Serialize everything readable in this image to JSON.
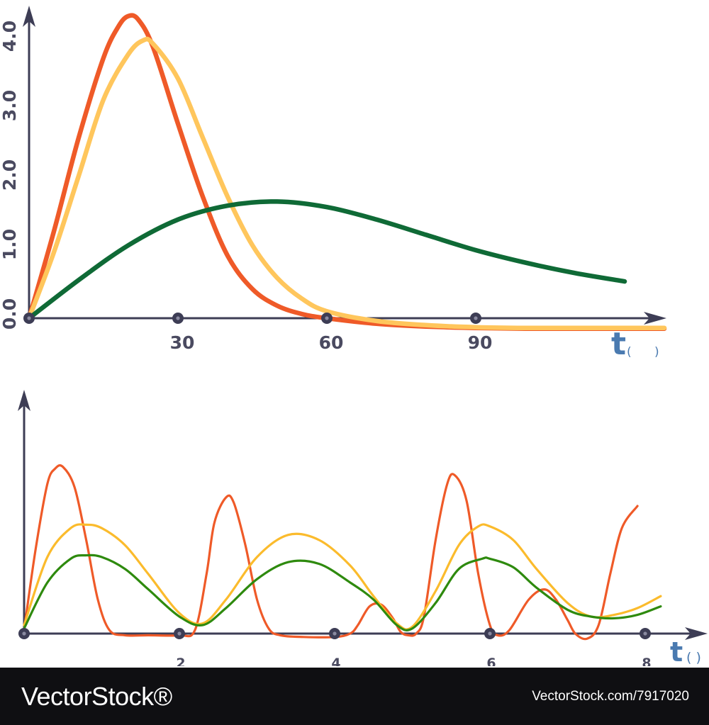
{
  "colors": {
    "axis": "#3d3d55",
    "orange": "#ef5a28",
    "yellow_top": "#ffc65c",
    "yellow_bottom": "#fbbb2c",
    "green_top": "#0f6a36",
    "green_bottom": "#2e8a0e",
    "t_label": "#4a7ab0"
  },
  "chart_data": [
    {
      "type": "line",
      "xlim": [
        0,
        128
      ],
      "ylim": [
        0,
        4.6
      ],
      "y_ticks": [
        "0.0",
        "1.0",
        "2.0",
        "3.0",
        "4.0"
      ],
      "x_ticks": [
        "30",
        "60",
        "90"
      ],
      "x_tick_values": [
        30,
        60,
        90
      ],
      "xlabel": "t",
      "xlabel_unit": "(      )",
      "series": [
        {
          "color": "orange",
          "x": [
            0,
            5,
            10,
            15,
            18,
            20,
            22,
            25,
            30,
            35,
            40,
            45,
            50,
            55,
            60,
            70,
            80,
            90,
            100,
            110,
            120,
            128
          ],
          "y": [
            0,
            1.25,
            2.6,
            3.75,
            4.2,
            4.35,
            4.3,
            3.9,
            2.8,
            1.75,
            0.9,
            0.42,
            0.18,
            0.06,
            0.0,
            -0.08,
            -0.12,
            -0.14,
            -0.15,
            -0.15,
            -0.15,
            -0.15
          ]
        },
        {
          "color": "yellow_top",
          "x": [
            0,
            5,
            10,
            15,
            20,
            23,
            25,
            30,
            35,
            40,
            45,
            50,
            55,
            60,
            70,
            80,
            90,
            100,
            110,
            120,
            128
          ],
          "y": [
            0,
            0.95,
            2.05,
            3.15,
            3.8,
            4.0,
            3.95,
            3.45,
            2.6,
            1.75,
            1.05,
            0.58,
            0.28,
            0.1,
            -0.04,
            -0.1,
            -0.13,
            -0.14,
            -0.14,
            -0.14,
            -0.14
          ]
        },
        {
          "color": "green_top",
          "x": [
            0,
            10,
            20,
            30,
            40,
            50,
            60,
            70,
            80,
            90,
            100,
            110,
            120
          ],
          "y": [
            0,
            0.55,
            1.05,
            1.42,
            1.62,
            1.68,
            1.6,
            1.42,
            1.2,
            0.98,
            0.8,
            0.65,
            0.53
          ]
        }
      ]
    },
    {
      "type": "line",
      "xlim": [
        0,
        8.8
      ],
      "ylim": [
        0,
        1
      ],
      "x_ticks": [
        "2",
        "4",
        "6",
        "8"
      ],
      "x_tick_values": [
        2,
        4,
        6,
        8
      ],
      "xlabel": "t",
      "xlabel_unit": "( )",
      "series": [
        {
          "color": "orange",
          "x": [
            0,
            0.15,
            0.3,
            0.4,
            0.5,
            0.65,
            0.8,
            0.95,
            1.1,
            1.3,
            1.6,
            2,
            2.2,
            2.35,
            2.45,
            2.6,
            2.7,
            2.85,
            3.0,
            3.15,
            3.3,
            3.6,
            4,
            4.2,
            4.3,
            4.45,
            4.6,
            4.75,
            4.85,
            4.95,
            5.05,
            5.15,
            5.3,
            5.45,
            5.55,
            5.7,
            5.85,
            6.0,
            6.1,
            6.25,
            6.5,
            6.7,
            6.85,
            7.0,
            7.1,
            7.25,
            7.4,
            7.55,
            7.7,
            7.9
          ],
          "y": [
            0.02,
            0.5,
            0.88,
            0.97,
            0.98,
            0.86,
            0.55,
            0.2,
            0.02,
            -0.01,
            -0.01,
            -0.01,
            0.02,
            0.35,
            0.65,
            0.8,
            0.77,
            0.52,
            0.2,
            0.03,
            -0.01,
            -0.02,
            -0.02,
            0.0,
            0.05,
            0.16,
            0.17,
            0.09,
            0.01,
            -0.01,
            0.0,
            0.1,
            0.55,
            0.88,
            0.93,
            0.78,
            0.35,
            0.05,
            -0.01,
            0.02,
            0.2,
            0.26,
            0.2,
            0.08,
            0.0,
            -0.03,
            0.05,
            0.35,
            0.62,
            0.75
          ]
        },
        {
          "color": "yellow_bottom",
          "x": [
            0,
            0.3,
            0.6,
            0.8,
            1.0,
            1.3,
            1.6,
            2.0,
            2.3,
            2.6,
            3.0,
            3.4,
            3.8,
            4.2,
            4.5,
            4.8,
            5.0,
            5.3,
            5.6,
            5.85,
            6.0,
            6.3,
            6.6,
            7.0,
            7.3,
            7.6,
            7.9,
            8.2
          ],
          "y": [
            0.05,
            0.45,
            0.62,
            0.64,
            0.62,
            0.52,
            0.35,
            0.12,
            0.06,
            0.2,
            0.45,
            0.58,
            0.55,
            0.4,
            0.22,
            0.06,
            0.04,
            0.25,
            0.52,
            0.63,
            0.63,
            0.55,
            0.38,
            0.18,
            0.1,
            0.11,
            0.15,
            0.22
          ]
        },
        {
          "color": "green_bottom",
          "x": [
            0,
            0.3,
            0.6,
            0.8,
            1.0,
            1.3,
            1.6,
            2.0,
            2.3,
            2.6,
            3.0,
            3.4,
            3.8,
            4.2,
            4.5,
            4.8,
            5.0,
            5.3,
            5.6,
            5.9,
            6.0,
            6.3,
            6.6,
            7.0,
            7.3,
            7.6,
            7.9,
            8.2
          ],
          "y": [
            0.03,
            0.3,
            0.44,
            0.46,
            0.45,
            0.38,
            0.26,
            0.1,
            0.05,
            0.15,
            0.32,
            0.42,
            0.41,
            0.3,
            0.2,
            0.05,
            0.03,
            0.18,
            0.38,
            0.44,
            0.44,
            0.39,
            0.27,
            0.14,
            0.1,
            0.09,
            0.11,
            0.16
          ]
        }
      ]
    }
  ],
  "footer": {
    "brand": "VectorStock®",
    "image_id": "VectorStock.com/7917020"
  }
}
